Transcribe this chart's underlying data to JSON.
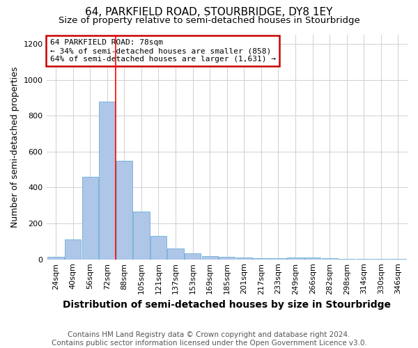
{
  "title1": "64, PARKFIELD ROAD, STOURBRIDGE, DY8 1EY",
  "title2": "Size of property relative to semi-detached houses in Stourbridge",
  "xlabel": "Distribution of semi-detached houses by size in Stourbridge",
  "ylabel": "Number of semi-detached properties",
  "categories": [
    "24sqm",
    "40sqm",
    "56sqm",
    "72sqm",
    "88sqm",
    "105sqm",
    "121sqm",
    "137sqm",
    "153sqm",
    "169sqm",
    "185sqm",
    "201sqm",
    "217sqm",
    "233sqm",
    "249sqm",
    "266sqm",
    "282sqm",
    "298sqm",
    "314sqm",
    "330sqm",
    "346sqm"
  ],
  "values": [
    15,
    110,
    460,
    880,
    550,
    265,
    130,
    60,
    35,
    20,
    15,
    10,
    8,
    5,
    10,
    10,
    5,
    3,
    2,
    2,
    1
  ],
  "bar_color": "#aec6e8",
  "bar_edge_color": "#6aaed6",
  "red_line_x": 3.5,
  "annotation_line1": "64 PARKFIELD ROAD: 78sqm",
  "annotation_line2": "← 34% of semi-detached houses are smaller (858)",
  "annotation_line3": "64% of semi-detached houses are larger (1,631) →",
  "annotation_box_color": "#ffffff",
  "annotation_box_edge": "#cc0000",
  "footer": "Contains HM Land Registry data © Crown copyright and database right 2024.\nContains public sector information licensed under the Open Government Licence v3.0.",
  "ylim": [
    0,
    1250
  ],
  "yticks": [
    0,
    200,
    400,
    600,
    800,
    1000,
    1200
  ],
  "title1_fontsize": 11,
  "title2_fontsize": 9.5,
  "xlabel_fontsize": 10,
  "ylabel_fontsize": 9,
  "tick_fontsize": 8,
  "annotation_fontsize": 8,
  "footer_fontsize": 7.5,
  "grid_color": "#d0d0d0"
}
